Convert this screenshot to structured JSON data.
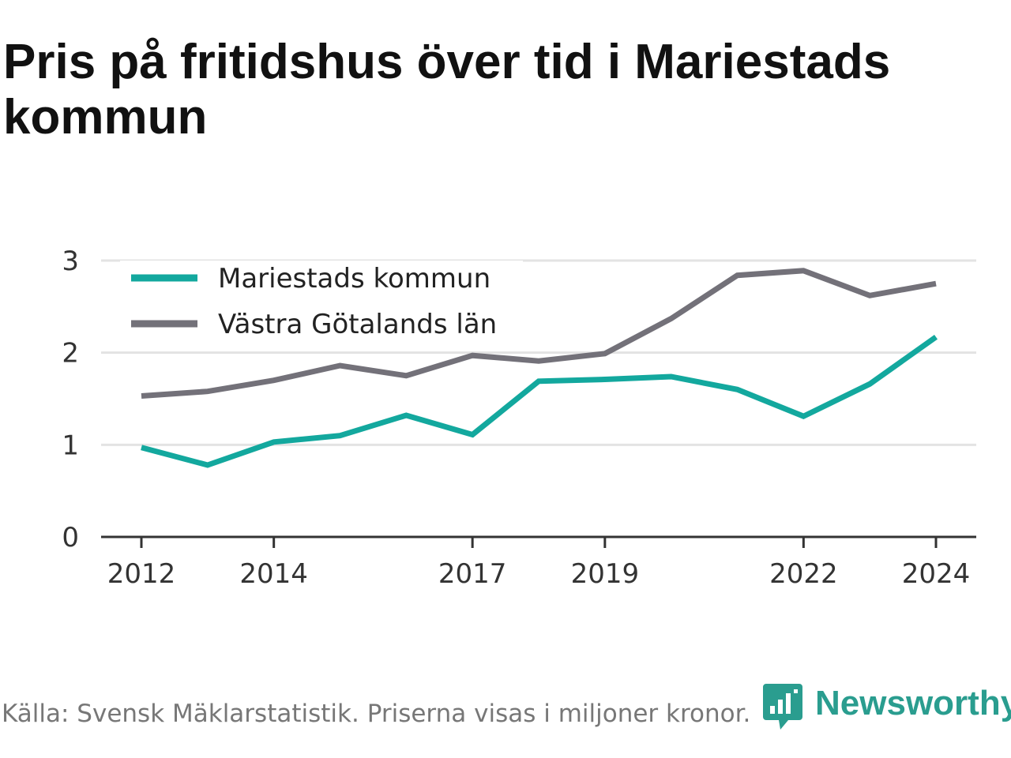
{
  "title": "Pris på fritidshus över tid i Mariestads kommun",
  "source": "Källa: Svensk Mäklarstatistik. Priserna visas i miljoner kronor.",
  "brand": {
    "name": "Newsworthy",
    "icon": "newsworthy-logo-icon",
    "color": "#2a9d8f"
  },
  "chart_data": {
    "type": "line",
    "x": [
      2012,
      2013,
      2014,
      2015,
      2016,
      2017,
      2018,
      2019,
      2020,
      2021,
      2022,
      2023,
      2024
    ],
    "x_tick_labels": [
      "2012",
      "2014",
      "2017",
      "2019",
      "2022",
      "2024"
    ],
    "x_tick_values": [
      2012,
      2014,
      2017,
      2019,
      2022,
      2024
    ],
    "y_ticks": [
      0,
      1,
      2,
      3
    ],
    "ylim": [
      0,
      3
    ],
    "grid": true,
    "legend_position": "top-left",
    "series": [
      {
        "name": "Mariestads kommun",
        "color": "#13a89e",
        "values": [
          0.97,
          0.78,
          1.03,
          1.1,
          1.32,
          1.11,
          1.69,
          1.71,
          1.74,
          1.6,
          1.31,
          1.66,
          2.17
        ]
      },
      {
        "name": "Västra Götalands län",
        "color": "#737179",
        "values": [
          1.53,
          1.58,
          1.7,
          1.86,
          1.75,
          1.97,
          1.91,
          1.99,
          2.37,
          2.84,
          2.89,
          2.62,
          2.75
        ]
      }
    ]
  }
}
